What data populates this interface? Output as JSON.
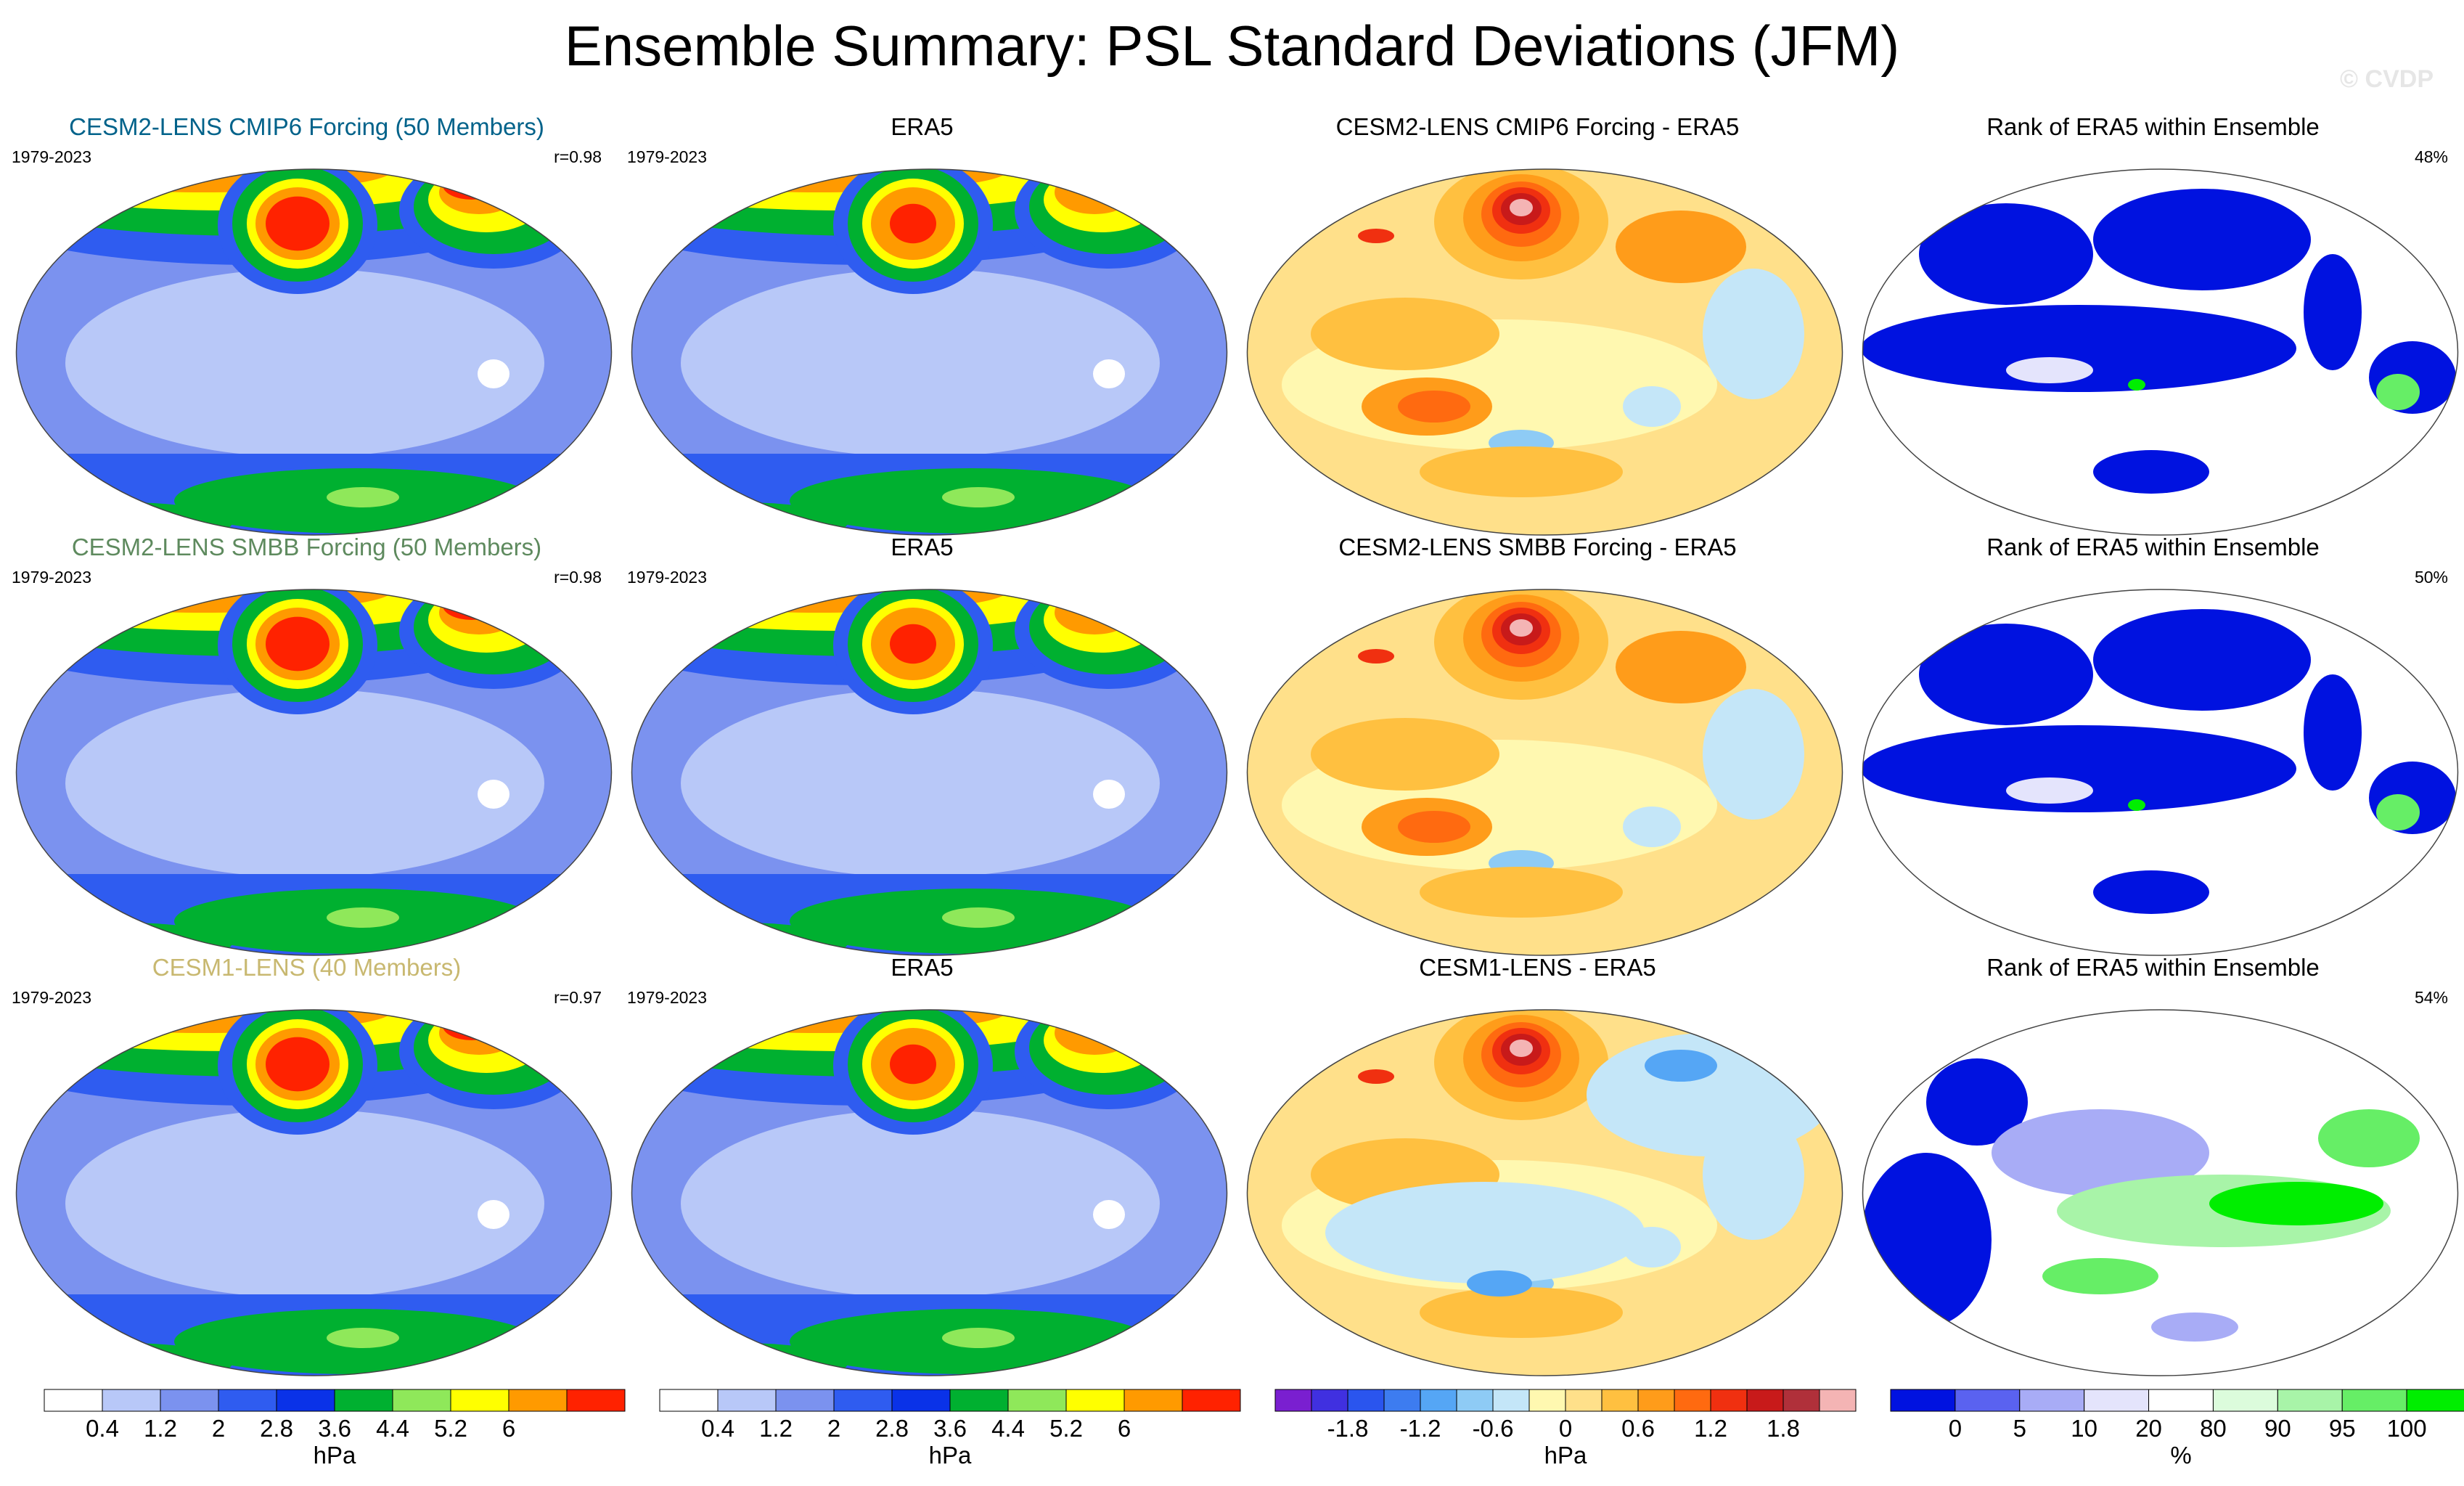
{
  "title": "Ensemble Summary: PSL Standard Deviations (JFM)",
  "credit": "© CVDP",
  "colors": {
    "sd": [
      "#ffffff",
      "#b8c8f8",
      "#7b92ef",
      "#2f5cf0",
      "#0a32e8",
      "#00b030",
      "#8fe85a",
      "#ffff00",
      "#ff9a00",
      "#ff2200"
    ],
    "diff": [
      "#7a1fd0",
      "#4030e0",
      "#2a55ee",
      "#3d7cf0",
      "#55a6f5",
      "#8ecbf5",
      "#c4e6f8",
      "#fff8b0",
      "#ffe08a",
      "#ffc040",
      "#ff9c1a",
      "#ff6a10",
      "#f03010",
      "#c81a1a",
      "#b0303a",
      "#f4b4b4"
    ],
    "rank": [
      "#0012e0",
      "#5a62f0",
      "#a8acf6",
      "#e4e4fc",
      "#ffffff",
      "#dcfcdc",
      "#a8f4a8",
      "#66ee66",
      "#00ee00"
    ]
  },
  "chart_data": [
    {
      "type": "heatmap",
      "row": 1,
      "title": "CESM2-LENS CMIP6 Forcing (50 Members)",
      "title_color": "#00628a",
      "period": "1979-2023",
      "stat": "r=0.98",
      "kind": "sd"
    },
    {
      "type": "heatmap",
      "row": 1,
      "title": "ERA5",
      "title_color": "#000000",
      "period": "1979-2023",
      "stat": "",
      "kind": "sd_obs"
    },
    {
      "type": "heatmap",
      "row": 1,
      "title": "CESM2-LENS CMIP6 Forcing - ERA5",
      "title_color": "#000000",
      "period": "",
      "stat": "",
      "kind": "diff"
    },
    {
      "type": "heatmap",
      "row": 1,
      "title": "Rank of ERA5 within Ensemble",
      "title_color": "#000000",
      "period": "",
      "stat": "48%",
      "kind": "rank"
    },
    {
      "type": "heatmap",
      "row": 2,
      "title": "CESM2-LENS SMBB Forcing (50 Members)",
      "title_color": "#5e8a5e",
      "period": "1979-2023",
      "stat": "r=0.98",
      "kind": "sd"
    },
    {
      "type": "heatmap",
      "row": 2,
      "title": "ERA5",
      "title_color": "#000000",
      "period": "1979-2023",
      "stat": "",
      "kind": "sd_obs"
    },
    {
      "type": "heatmap",
      "row": 2,
      "title": "CESM2-LENS SMBB Forcing - ERA5",
      "title_color": "#000000",
      "period": "",
      "stat": "",
      "kind": "diff"
    },
    {
      "type": "heatmap",
      "row": 2,
      "title": "Rank of ERA5 within Ensemble",
      "title_color": "#000000",
      "period": "",
      "stat": "50%",
      "kind": "rank"
    },
    {
      "type": "heatmap",
      "row": 3,
      "title": "CESM1-LENS (40 Members)",
      "title_color": "#c8b870",
      "period": "1979-2023",
      "stat": "r=0.97",
      "kind": "sd"
    },
    {
      "type": "heatmap",
      "row": 3,
      "title": "ERA5",
      "title_color": "#000000",
      "period": "1979-2023",
      "stat": "",
      "kind": "sd_obs"
    },
    {
      "type": "heatmap",
      "row": 3,
      "title": "CESM1-LENS - ERA5",
      "title_color": "#000000",
      "period": "",
      "stat": "",
      "kind": "diff"
    },
    {
      "type": "heatmap",
      "row": 3,
      "title": "Rank of ERA5 within Ensemble",
      "title_color": "#000000",
      "period": "",
      "stat": "54%",
      "kind": "rank"
    }
  ],
  "colorbars": [
    {
      "kind": "sd",
      "unit": "hPa",
      "levels": [
        "0.4",
        "1.2",
        "2",
        "2.8",
        "3.6",
        "4.4",
        "5.2",
        "6"
      ]
    },
    {
      "kind": "sd",
      "unit": "hPa",
      "levels": [
        "0.4",
        "1.2",
        "2",
        "2.8",
        "3.6",
        "4.4",
        "5.2",
        "6"
      ]
    },
    {
      "kind": "diff",
      "unit": "hPa",
      "levels": [
        "-1.8",
        "-1.2",
        "-0.6",
        "0",
        "0.6",
        "1.2",
        "1.8"
      ]
    },
    {
      "kind": "rank",
      "unit": "%",
      "levels": [
        "0",
        "5",
        "10",
        "20",
        "80",
        "90",
        "95",
        "100"
      ]
    }
  ]
}
